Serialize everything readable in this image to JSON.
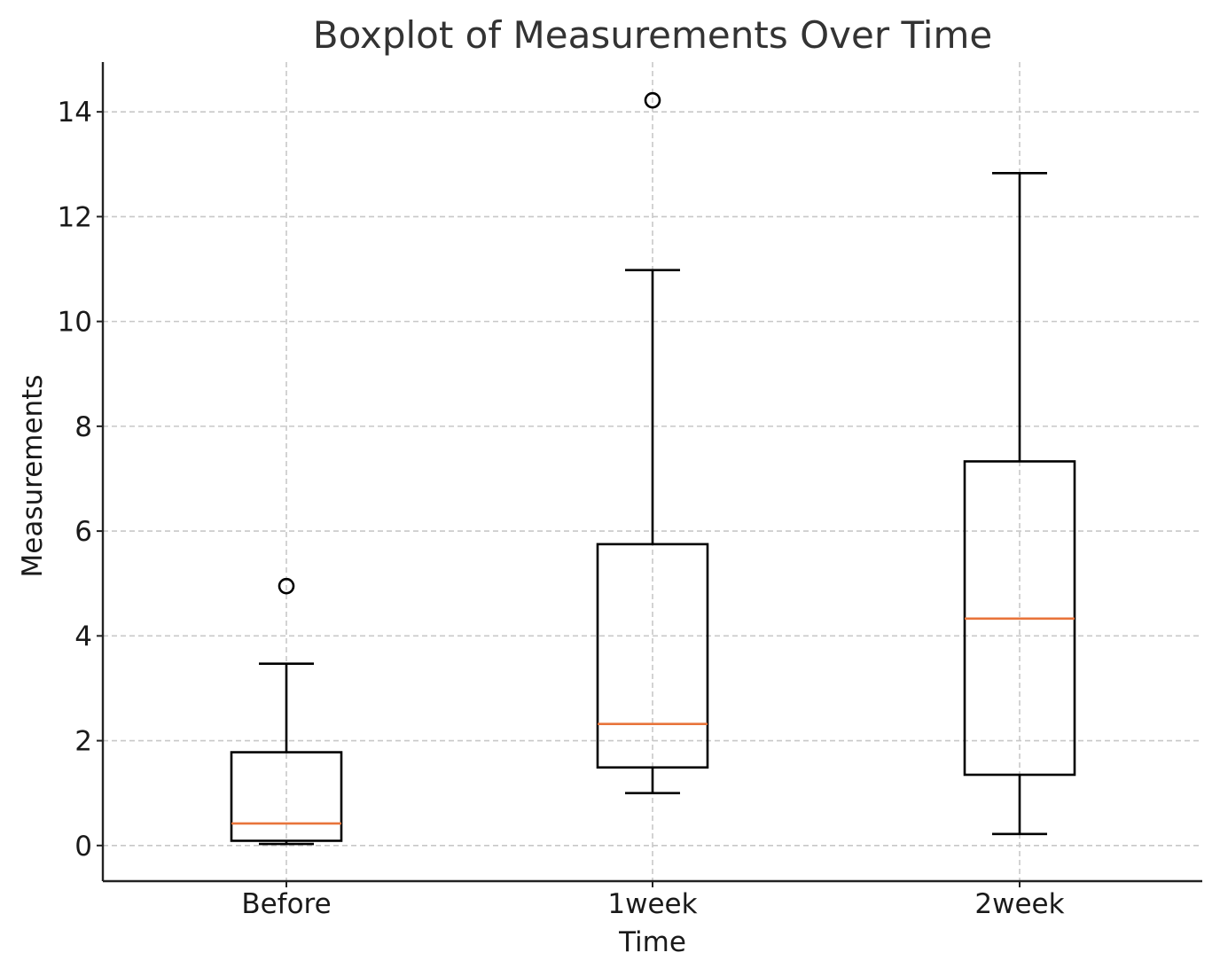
{
  "chart_data": {
    "type": "boxplot",
    "title": "Boxplot of Measurements Over Time",
    "xlabel": "Time",
    "ylabel": "Measurements",
    "categories": [
      "Before",
      "1week",
      "2week"
    ],
    "ylim": [
      -0.68,
      14.95
    ],
    "yticks": [
      0,
      2,
      4,
      6,
      8,
      10,
      12,
      14
    ],
    "grid": true,
    "boxes": [
      {
        "category": "Before",
        "whisker_low": 0.03,
        "q1": 0.09,
        "median": 0.42,
        "q3": 1.78,
        "whisker_high": 3.47,
        "outliers": [
          4.95
        ]
      },
      {
        "category": "1week",
        "whisker_low": 1.0,
        "q1": 1.49,
        "median": 2.32,
        "q3": 5.75,
        "whisker_high": 10.98,
        "outliers": [
          14.22
        ]
      },
      {
        "category": "2week",
        "whisker_low": 0.22,
        "q1": 1.35,
        "median": 4.33,
        "q3": 7.33,
        "whisker_high": 12.83,
        "outliers": []
      }
    ],
    "colors": {
      "box": "#000000",
      "median": "#e8743b",
      "grid": "#c8c8c8"
    }
  }
}
